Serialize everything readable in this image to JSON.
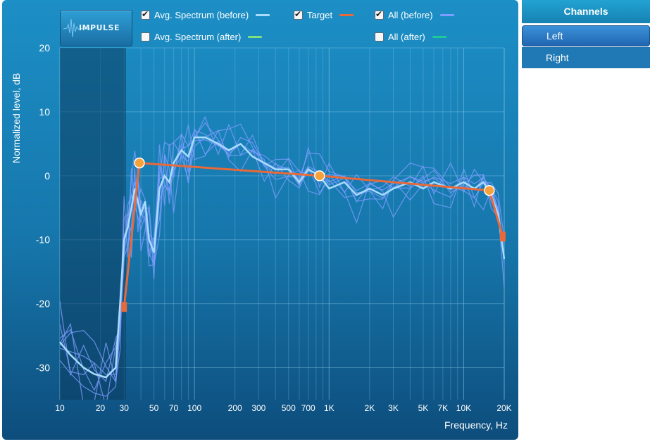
{
  "impulse_button": {
    "label": "IMPULSE"
  },
  "legend": [
    {
      "label": "Avg. Spectrum (before)",
      "checked": true,
      "color": "#a8dcff"
    },
    {
      "label": "Avg. Spectrum (after)",
      "checked": false,
      "color": "#7ee07e"
    },
    {
      "label": "Target",
      "checked": true,
      "color": "#e8693a"
    },
    {
      "label": "All (before)",
      "checked": true,
      "color": "#7d9dff"
    },
    {
      "label": "All (after)",
      "checked": false,
      "color": "#1ec99a"
    }
  ],
  "channels": {
    "header": "Channels",
    "items": [
      {
        "label": "Left",
        "selected": true
      },
      {
        "label": "Right",
        "selected": false
      }
    ]
  },
  "chart_data": {
    "type": "line",
    "title": "",
    "xlabel": "Frequency, Hz",
    "ylabel": "Normalized level, dB",
    "xscale": "log",
    "xlim": [
      10,
      20000
    ],
    "ylim": [
      -35,
      20
    ],
    "xticks": [
      {
        "v": 10,
        "l": "10"
      },
      {
        "v": 20,
        "l": "20"
      },
      {
        "v": 30,
        "l": "30"
      },
      {
        "v": 50,
        "l": "50"
      },
      {
        "v": 70,
        "l": "70"
      },
      {
        "v": 100,
        "l": "100"
      },
      {
        "v": 200,
        "l": "200"
      },
      {
        "v": 300,
        "l": "300"
      },
      {
        "v": 500,
        "l": "500"
      },
      {
        "v": 700,
        "l": "700"
      },
      {
        "v": 1000,
        "l": "1K"
      },
      {
        "v": 2000,
        "l": "2K"
      },
      {
        "v": 3000,
        "l": "3K"
      },
      {
        "v": 5000,
        "l": "5K"
      },
      {
        "v": 7000,
        "l": "7K"
      },
      {
        "v": 10000,
        "l": "10K"
      },
      {
        "v": 20000,
        "l": "20K"
      }
    ],
    "yticks": [
      {
        "v": 20,
        "l": "20"
      },
      {
        "v": 10,
        "l": "10"
      },
      {
        "v": 0,
        "l": "0"
      },
      {
        "v": -10,
        "l": "-10"
      },
      {
        "v": -20,
        "l": "-20"
      },
      {
        "v": -30,
        "l": "-30"
      }
    ],
    "excluded_range": [
      10,
      31
    ],
    "grid": true,
    "series": [
      {
        "name": "Target",
        "color": "#e8693a",
        "points": [
          {
            "x": 30,
            "y": -20.5,
            "marker": "square"
          },
          {
            "x": 39,
            "y": 2,
            "marker": "circle"
          },
          {
            "x": 850,
            "y": 0,
            "marker": "circle"
          },
          {
            "x": 15500,
            "y": -2.3,
            "marker": "circle"
          },
          {
            "x": 19500,
            "y": -9.5,
            "marker": "square"
          }
        ]
      },
      {
        "name": "Avg. Spectrum (before)",
        "color": "#a8dcff",
        "points": [
          {
            "x": 10,
            "y": -26
          },
          {
            "x": 12,
            "y": -28
          },
          {
            "x": 15,
            "y": -30
          },
          {
            "x": 18,
            "y": -31
          },
          {
            "x": 22,
            "y": -31.5
          },
          {
            "x": 26,
            "y": -30
          },
          {
            "x": 28,
            "y": -20
          },
          {
            "x": 30,
            "y": -10
          },
          {
            "x": 32,
            "y": -8
          },
          {
            "x": 34,
            "y": -5
          },
          {
            "x": 36,
            "y": -2
          },
          {
            "x": 38,
            "y": -4
          },
          {
            "x": 40,
            "y": -6
          },
          {
            "x": 43,
            "y": -4
          },
          {
            "x": 46,
            "y": -10
          },
          {
            "x": 50,
            "y": -12
          },
          {
            "x": 55,
            "y": -2
          },
          {
            "x": 60,
            "y": 0
          },
          {
            "x": 65,
            "y": -1
          },
          {
            "x": 70,
            "y": 2
          },
          {
            "x": 80,
            "y": 4
          },
          {
            "x": 90,
            "y": 3
          },
          {
            "x": 100,
            "y": 6
          },
          {
            "x": 120,
            "y": 6
          },
          {
            "x": 150,
            "y": 5
          },
          {
            "x": 180,
            "y": 4
          },
          {
            "x": 220,
            "y": 5
          },
          {
            "x": 270,
            "y": 3
          },
          {
            "x": 330,
            "y": 2
          },
          {
            "x": 400,
            "y": 1
          },
          {
            "x": 500,
            "y": 1
          },
          {
            "x": 600,
            "y": -1
          },
          {
            "x": 700,
            "y": 1
          },
          {
            "x": 850,
            "y": 0
          },
          {
            "x": 1000,
            "y": -2
          },
          {
            "x": 1300,
            "y": -1
          },
          {
            "x": 1600,
            "y": -3
          },
          {
            "x": 2000,
            "y": -2
          },
          {
            "x": 2500,
            "y": -3
          },
          {
            "x": 3000,
            "y": -2
          },
          {
            "x": 4000,
            "y": -1
          },
          {
            "x": 5000,
            "y": -2
          },
          {
            "x": 6000,
            "y": -1
          },
          {
            "x": 8000,
            "y": -2
          },
          {
            "x": 10000,
            "y": -1
          },
          {
            "x": 12000,
            "y": -2
          },
          {
            "x": 14000,
            "y": -1
          },
          {
            "x": 16000,
            "y": -3
          },
          {
            "x": 18000,
            "y": -6
          },
          {
            "x": 20000,
            "y": -13
          }
        ]
      }
    ]
  },
  "colors": {
    "grid": "#8cc8ea",
    "axis_text": "#ffffff",
    "background_top": "#1c8fc6",
    "background_bottom": "#0d4d7c"
  }
}
